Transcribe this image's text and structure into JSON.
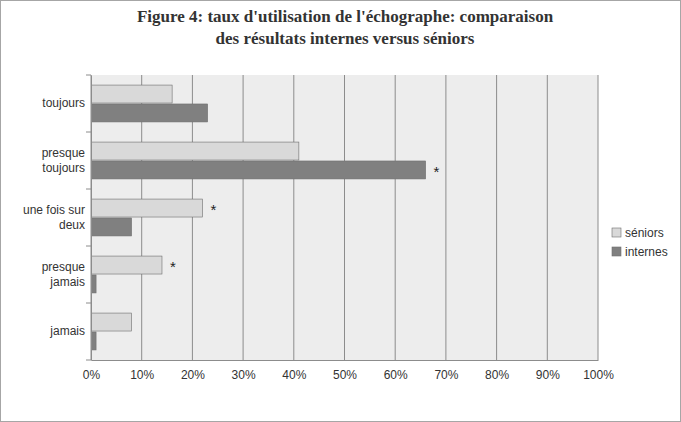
{
  "chart_data": {
    "type": "bar",
    "orientation": "horizontal",
    "title": "Figure 4: taux d'utilisation de l'échographe: comparaison\ndes résultats internes versus séniors",
    "categories": [
      "toujours",
      "presque\ntoujours",
      "une fois sur\ndeux",
      "presque\njamais",
      "jamais"
    ],
    "series": [
      {
        "name": "séniors",
        "color": "#d9d9d9",
        "values": [
          16,
          41,
          22,
          14,
          8
        ]
      },
      {
        "name": "internes",
        "color": "#808080",
        "values": [
          23,
          66,
          8,
          1,
          1
        ]
      }
    ],
    "xlim": [
      0,
      100
    ],
    "xticks": [
      {
        "value": 0,
        "label": "0%"
      },
      {
        "value": 10,
        "label": "10%"
      },
      {
        "value": 20,
        "label": "20%"
      },
      {
        "value": 30,
        "label": "30%"
      },
      {
        "value": 40,
        "label": "40%"
      },
      {
        "value": 50,
        "label": "50%"
      },
      {
        "value": 60,
        "label": "60%"
      },
      {
        "value": 70,
        "label": "70%"
      },
      {
        "value": 80,
        "label": "80%"
      },
      {
        "value": 90,
        "label": "90%"
      },
      {
        "value": 100,
        "label": "100%"
      }
    ],
    "grid": true,
    "legend": "right",
    "annotations": [
      {
        "text": "*",
        "category": "presque\ntoujours"
      },
      {
        "text": "*",
        "category": "une fois sur\ndeux"
      },
      {
        "text": "*",
        "category": "presque\njamais"
      }
    ]
  }
}
